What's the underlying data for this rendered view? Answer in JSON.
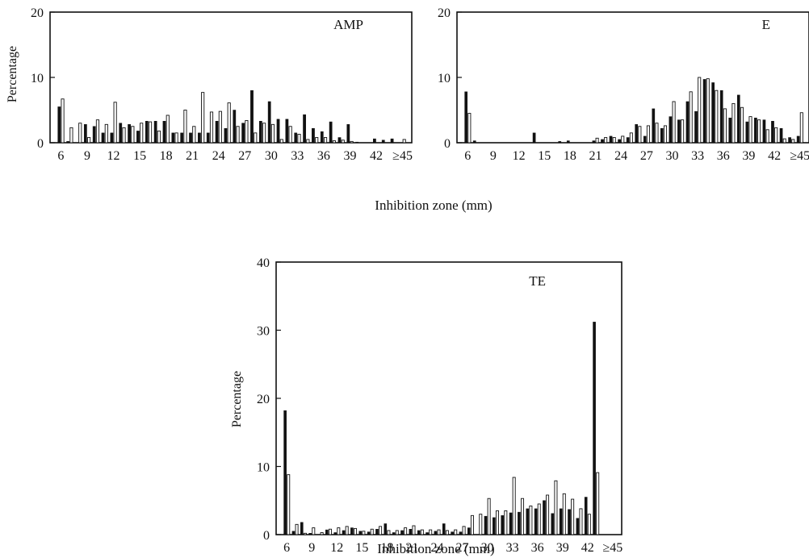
{
  "figure": {
    "xlabel": "Inhibition zone (mm)",
    "ylabel": "Percentage"
  },
  "colors": {
    "dark": "#111111",
    "open": "#ffffff",
    "axis": "#111111"
  },
  "chart_data": [
    {
      "type": "bar",
      "title": "AMP",
      "xlabel": "Inhibition zone (mm)",
      "ylabel": "Percentage",
      "ylim": [
        0,
        20
      ],
      "yticks": [
        0,
        10,
        20
      ],
      "xticks": [
        "6",
        "9",
        "12",
        "15",
        "18",
        "21",
        "24",
        "27",
        "30",
        "33",
        "36",
        "39",
        "42",
        "≥45"
      ],
      "categories": [
        "6",
        "7",
        "8",
        "9",
        "10",
        "11",
        "12",
        "13",
        "14",
        "15",
        "16",
        "17",
        "18",
        "19",
        "20",
        "21",
        "22",
        "23",
        "24",
        "25",
        "26",
        "27",
        "28",
        "29",
        "30",
        "31",
        "32",
        "33",
        "34",
        "35",
        "36",
        "37",
        "38",
        "39",
        "40",
        "41",
        "42",
        "43",
        "44",
        "45"
      ],
      "series": [
        {
          "fill": "dark",
          "values": [
            5.5,
            0.2,
            0,
            2.8,
            2.5,
            1.5,
            1.5,
            3.0,
            2.8,
            1.8,
            3.3,
            3.3,
            3.3,
            1.5,
            1.5,
            1.5,
            1.5,
            1.5,
            3.3,
            2.2,
            5.0,
            3.0,
            8.0,
            3.3,
            6.3,
            3.6,
            3.6,
            1.5,
            4.3,
            2.2,
            1.7,
            3.2,
            0.8,
            2.8,
            0.1,
            0,
            0.6,
            0.4,
            0.6,
            0
          ]
        },
        {
          "fill": "open",
          "values": [
            6.7,
            2.3,
            3.0,
            0.8,
            3.5,
            2.8,
            6.2,
            2.3,
            2.5,
            3.0,
            3.2,
            1.8,
            4.2,
            1.5,
            5.0,
            2.5,
            7.7,
            4.7,
            4.8,
            6.1,
            2.5,
            3.4,
            1.5,
            3.0,
            2.8,
            0.5,
            2.5,
            1.3,
            0.5,
            0.8,
            0.8,
            0.3,
            0.4,
            0.2,
            0,
            0,
            0,
            0,
            0,
            0.5
          ]
        }
      ]
    },
    {
      "type": "bar",
      "title": "E",
      "xlabel": "Inhibition zone (mm)",
      "ylabel": "Percentage",
      "ylim": [
        0,
        20
      ],
      "yticks": [
        0,
        10,
        20
      ],
      "xticks": [
        "6",
        "9",
        "12",
        "15",
        "18",
        "21",
        "24",
        "27",
        "30",
        "33",
        "36",
        "39",
        "42",
        "≥45"
      ],
      "categories": [
        "6",
        "7",
        "8",
        "9",
        "10",
        "11",
        "12",
        "13",
        "14",
        "15",
        "16",
        "17",
        "18",
        "19",
        "20",
        "21",
        "22",
        "23",
        "24",
        "25",
        "26",
        "27",
        "28",
        "29",
        "30",
        "31",
        "32",
        "33",
        "34",
        "35",
        "36",
        "37",
        "38",
        "39",
        "40",
        "41",
        "42",
        "43",
        "44",
        "45"
      ],
      "series": [
        {
          "fill": "dark",
          "values": [
            7.8,
            0.3,
            0,
            0,
            0,
            0,
            0,
            0,
            1.5,
            0,
            0,
            0.2,
            0.3,
            0,
            0,
            0.3,
            0.5,
            1.0,
            0.5,
            0.8,
            2.8,
            1.0,
            5.2,
            2.2,
            4.0,
            3.5,
            6.3,
            4.8,
            9.7,
            9.2,
            8.0,
            3.8,
            7.3,
            3.2,
            3.8,
            3.5,
            3.3,
            2.2,
            0.8,
            1.0
          ]
        },
        {
          "fill": "open",
          "values": [
            4.5,
            0,
            0,
            0,
            0,
            0,
            0,
            0,
            0,
            0,
            0,
            0,
            0,
            0,
            0,
            0.7,
            0.8,
            0.8,
            1.0,
            1.5,
            2.5,
            2.6,
            3.0,
            2.6,
            6.3,
            3.5,
            7.8,
            10.0,
            9.8,
            8.0,
            5.2,
            6.0,
            5.4,
            4.0,
            3.5,
            2.0,
            2.3,
            0.6,
            0.5,
            4.6
          ]
        }
      ]
    },
    {
      "type": "bar",
      "title": "TE",
      "xlabel": "Inhibition zone (mm)",
      "ylabel": "Percentage",
      "ylim": [
        0,
        40
      ],
      "yticks": [
        0,
        10,
        20,
        30,
        40
      ],
      "xticks": [
        "6",
        "9",
        "12",
        "15",
        "18",
        "21",
        "24",
        "27",
        "30",
        "33",
        "36",
        "39",
        "42",
        "≥45"
      ],
      "categories": [
        "6",
        "7",
        "8",
        "9",
        "10",
        "11",
        "12",
        "13",
        "14",
        "15",
        "16",
        "17",
        "18",
        "19",
        "20",
        "21",
        "22",
        "23",
        "24",
        "25",
        "26",
        "27",
        "28",
        "29",
        "30",
        "31",
        "32",
        "33",
        "34",
        "35",
        "36",
        "37",
        "38",
        "39",
        "40",
        "41",
        "42",
        "43",
        "44",
        "45"
      ],
      "series": [
        {
          "fill": "dark",
          "values": [
            18.2,
            0.5,
            1.8,
            0.2,
            0,
            0.7,
            0.3,
            0.6,
            1.0,
            0.5,
            0.4,
            0.8,
            1.6,
            0.3,
            0.6,
            0.8,
            0.6,
            0.3,
            0.5,
            1.6,
            0.4,
            0.4,
            1.0,
            0,
            2.7,
            2.5,
            2.8,
            3.2,
            3.3,
            3.8,
            3.8,
            5.0,
            3.1,
            3.8,
            3.7,
            2.4,
            5.5,
            31.2,
            0,
            0
          ]
        },
        {
          "fill": "open",
          "values": [
            8.8,
            1.5,
            0.2,
            1.0,
            0.3,
            0.8,
            1.0,
            1.2,
            0.9,
            0.5,
            0.8,
            1.2,
            0.6,
            0.6,
            1.0,
            1.3,
            0.7,
            0.7,
            0.7,
            0.6,
            0.7,
            1.2,
            2.8,
            3.0,
            5.3,
            3.5,
            3.5,
            8.4,
            5.3,
            4.2,
            4.5,
            5.8,
            7.9,
            6.0,
            5.2,
            3.8,
            3.0,
            9.1,
            0,
            0
          ]
        }
      ]
    }
  ]
}
